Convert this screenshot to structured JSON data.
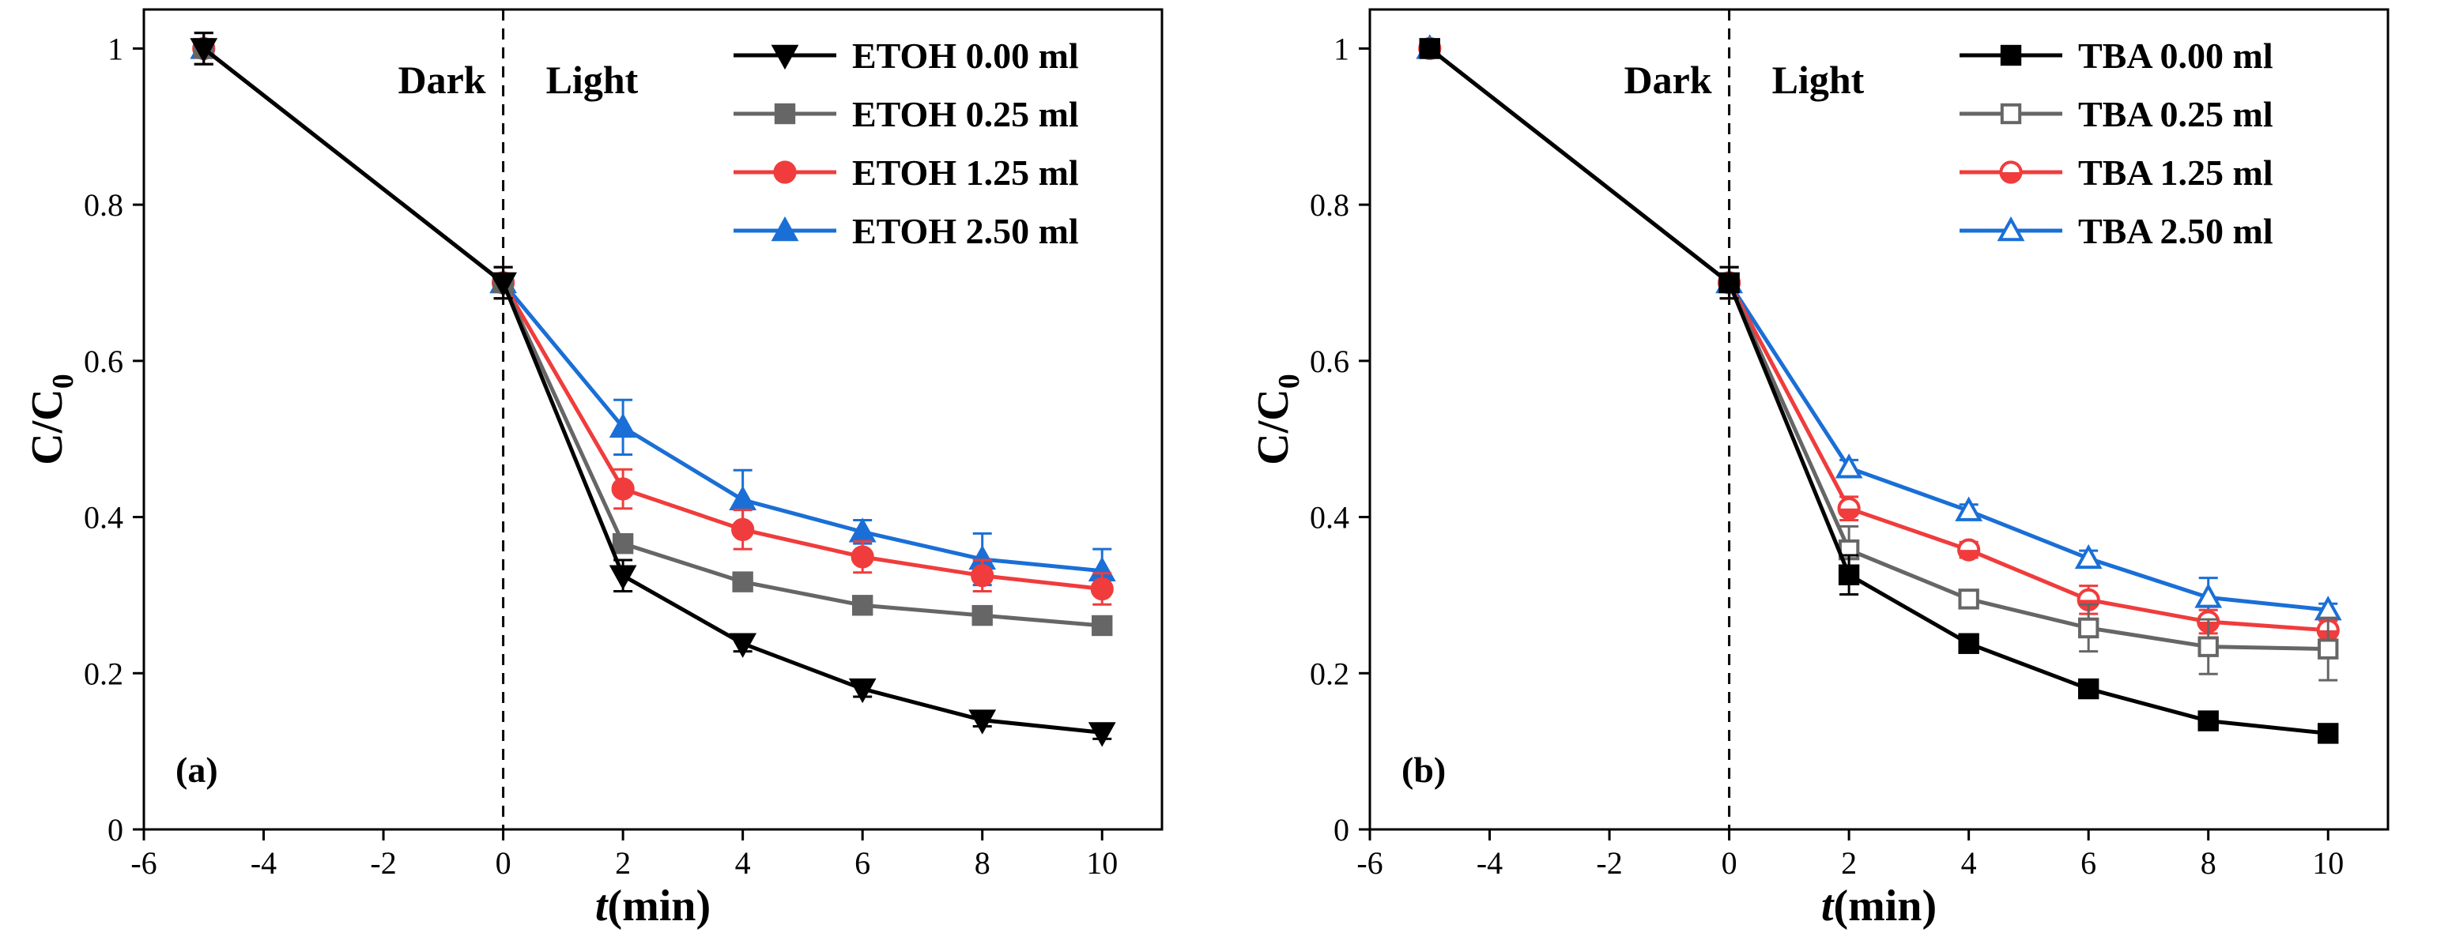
{
  "chart_data": [
    {
      "type": "line",
      "panel_label": "(a)",
      "xlabel_italic": "t",
      "xlabel_rest": "(min)",
      "ylabel_main": "C/C",
      "ylabel_sub": "0",
      "xlim": [
        -6,
        11
      ],
      "ylim": [
        0,
        1.05
      ],
      "xticks": [
        -6,
        -4,
        -2,
        0,
        2,
        4,
        6,
        8,
        10
      ],
      "yticks": [
        0.0,
        0.2,
        0.4,
        0.6,
        0.8,
        1.0
      ],
      "divider_x": 0,
      "region_labels": {
        "left": "Dark",
        "right": "Light"
      },
      "legend_position": "top-right",
      "x": [
        -5,
        0,
        2,
        4,
        6,
        8,
        10
      ],
      "series": [
        {
          "name": "ETOH 0.00 ml",
          "color": "#000000",
          "marker": "triangle-down",
          "filled": true,
          "values": [
            1.0,
            0.7,
            0.325,
            0.238,
            0.18,
            0.14,
            0.124
          ],
          "errors": [
            0.02,
            0.02,
            0.02,
            0.01,
            0.01,
            0.008,
            0.008
          ]
        },
        {
          "name": "ETOH 0.25 ml",
          "color": "#666666",
          "marker": "square",
          "filled": true,
          "values": [
            1.0,
            0.7,
            0.366,
            0.317,
            0.287,
            0.274,
            0.261
          ],
          "errors": [
            0.02,
            0.02,
            0.01,
            0.01,
            0.008,
            0.008,
            0.008
          ]
        },
        {
          "name": "ETOH 1.25 ml",
          "color": "#f03c3c",
          "marker": "circle",
          "filled": true,
          "values": [
            1.0,
            0.7,
            0.436,
            0.384,
            0.349,
            0.325,
            0.308
          ],
          "errors": [
            0.02,
            0.02,
            0.025,
            0.025,
            0.02,
            0.02,
            0.02
          ]
        },
        {
          "name": "ETOH 2.50 ml",
          "color": "#1a6fd6",
          "marker": "triangle-up",
          "filled": true,
          "values": [
            1.0,
            0.7,
            0.515,
            0.422,
            0.381,
            0.346,
            0.331
          ],
          "errors": [
            0.02,
            0.02,
            0.035,
            0.038,
            0.015,
            0.033,
            0.028
          ]
        }
      ]
    },
    {
      "type": "line",
      "panel_label": "(b)",
      "xlabel_italic": "t",
      "xlabel_rest": "(min)",
      "ylabel_main": "C/C",
      "ylabel_sub": "0",
      "xlim": [
        -6,
        11
      ],
      "ylim": [
        0,
        1.05
      ],
      "xticks": [
        -6,
        -4,
        -2,
        0,
        2,
        4,
        6,
        8,
        10
      ],
      "yticks": [
        0.0,
        0.2,
        0.4,
        0.6,
        0.8,
        1.0
      ],
      "divider_x": 0,
      "region_labels": {
        "left": "Dark",
        "right": "Light"
      },
      "legend_position": "top-right",
      "x": [
        -5,
        0,
        2,
        4,
        6,
        8,
        10
      ],
      "series": [
        {
          "name": "TBA 0.00 ml",
          "color": "#000000",
          "marker": "square",
          "filled": true,
          "values": [
            1.0,
            0.7,
            0.326,
            0.238,
            0.18,
            0.139,
            0.123
          ],
          "errors": [
            0.01,
            0.02,
            0.025,
            0.01,
            0.008,
            0.008,
            0.008
          ]
        },
        {
          "name": "TBA 0.25 ml",
          "color": "#666666",
          "marker": "square",
          "filled": false,
          "values": [
            1.0,
            0.7,
            0.358,
            0.295,
            0.258,
            0.234,
            0.231
          ],
          "errors": [
            0.01,
            0.02,
            0.03,
            0.01,
            0.03,
            0.035,
            0.04
          ]
        },
        {
          "name": "TBA 1.25 ml",
          "color": "#f03c3c",
          "marker": "circle",
          "filled": "half",
          "values": [
            1.0,
            0.7,
            0.411,
            0.358,
            0.294,
            0.266,
            0.255
          ],
          "errors": [
            0.01,
            0.02,
            0.015,
            0.01,
            0.018,
            0.015,
            0.012
          ]
        },
        {
          "name": "TBA 2.50 ml",
          "color": "#1a6fd6",
          "marker": "triangle-up",
          "filled": false,
          "values": [
            1.0,
            0.7,
            0.463,
            0.408,
            0.347,
            0.297,
            0.281
          ],
          "errors": [
            0.01,
            0.02,
            0.01,
            0.008,
            0.01,
            0.025,
            0.008
          ]
        }
      ]
    }
  ]
}
